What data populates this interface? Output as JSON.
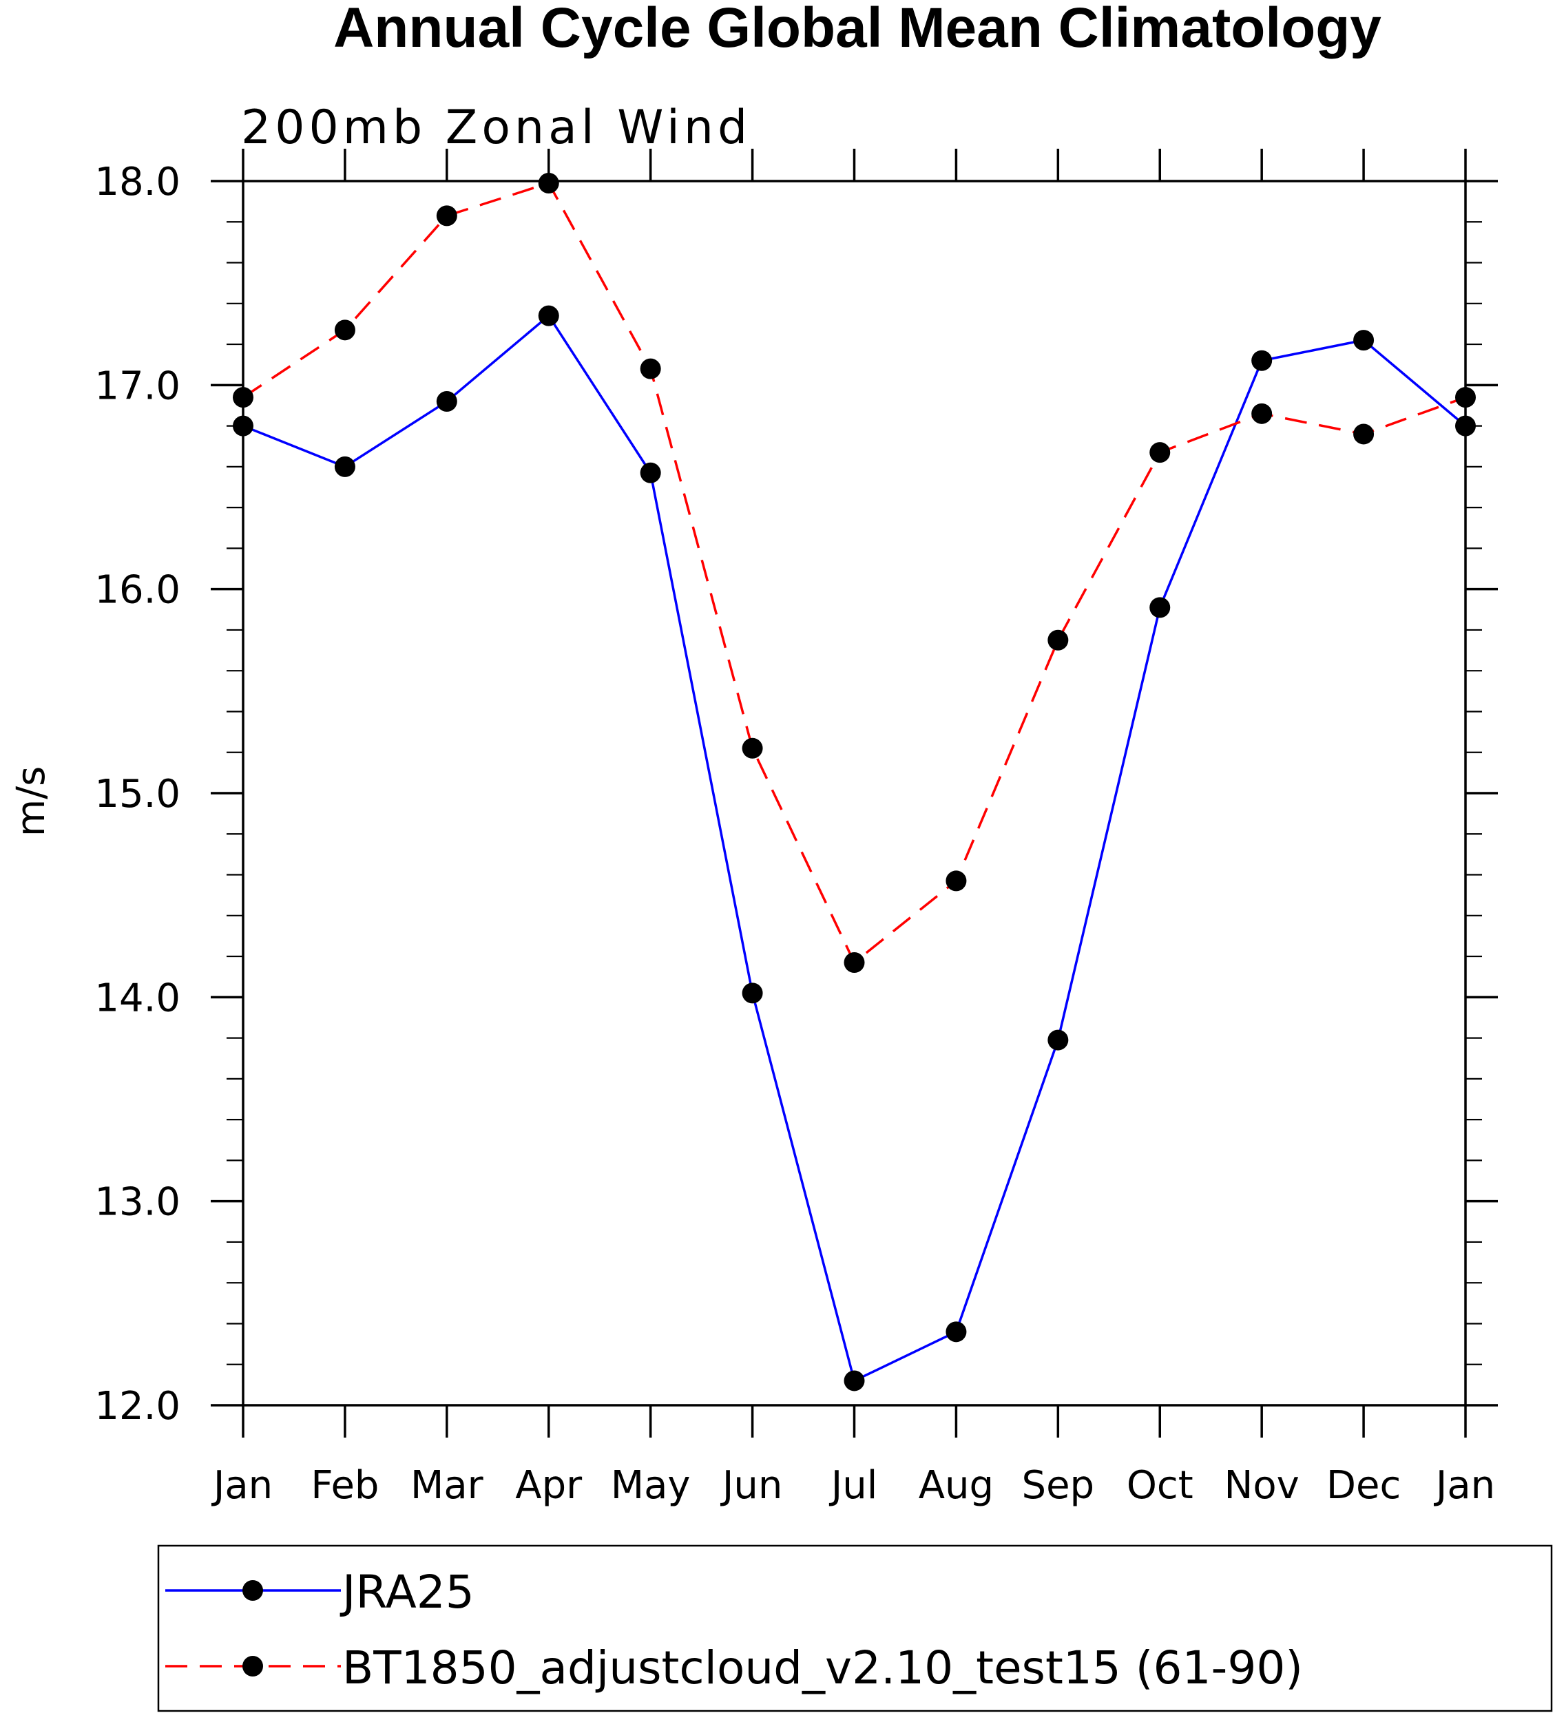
{
  "chart_data": {
    "type": "line",
    "title": "Annual Cycle Global Mean Climatology",
    "subtitle": "200mb Zonal Wind",
    "ylabel": "m/s",
    "xlabel": "",
    "categories": [
      "Jan",
      "Feb",
      "Mar",
      "Apr",
      "May",
      "Jun",
      "Jul",
      "Aug",
      "Sep",
      "Oct",
      "Nov",
      "Dec",
      "Jan"
    ],
    "ylim": [
      12.0,
      18.0
    ],
    "yticks": [
      "12.0",
      "13.0",
      "14.0",
      "15.0",
      "16.0",
      "17.0",
      "18.0"
    ],
    "series": [
      {
        "name": "JRA25",
        "color": "#0000ff",
        "dash": "solid",
        "values": [
          16.8,
          16.6,
          16.92,
          17.34,
          16.57,
          14.02,
          12.12,
          12.36,
          13.79,
          15.91,
          17.12,
          17.22,
          16.8
        ]
      },
      {
        "name": "BT1850_adjustcloud_v2.10_test15 (61-90)",
        "color": "#ff0000",
        "dash": "dashed",
        "values": [
          16.94,
          17.27,
          17.83,
          17.99,
          17.08,
          15.22,
          14.17,
          14.57,
          15.75,
          16.67,
          16.86,
          16.76,
          16.94
        ]
      }
    ],
    "legend_position": "bottom"
  }
}
